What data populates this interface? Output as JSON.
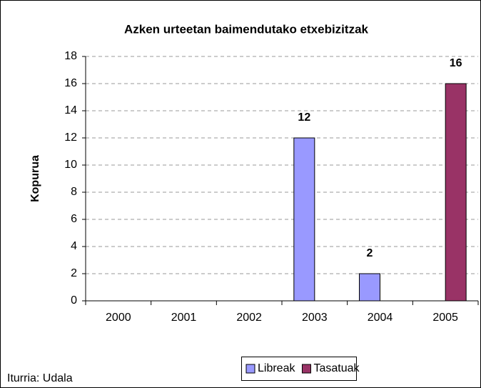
{
  "chart_data": {
    "type": "bar",
    "title": "Azken urteetan baimendutako etxebizitzak",
    "y_label": "Kopurua",
    "footnote": "Iturria: Udala",
    "categories": [
      "2000",
      "2001",
      "2002",
      "2003",
      "2004",
      "2005"
    ],
    "series": [
      {
        "name": "Libreak",
        "color": "#9999ff",
        "values": [
          null,
          null,
          null,
          12,
          2,
          null
        ]
      },
      {
        "name": "Tasatuak",
        "color": "#993366",
        "values": [
          null,
          null,
          null,
          null,
          null,
          16
        ]
      }
    ],
    "ylim": [
      0,
      18
    ],
    "yticks": [
      0,
      2,
      4,
      6,
      8,
      10,
      12,
      14,
      16,
      18
    ],
    "grid": true,
    "legend": "bottom"
  }
}
